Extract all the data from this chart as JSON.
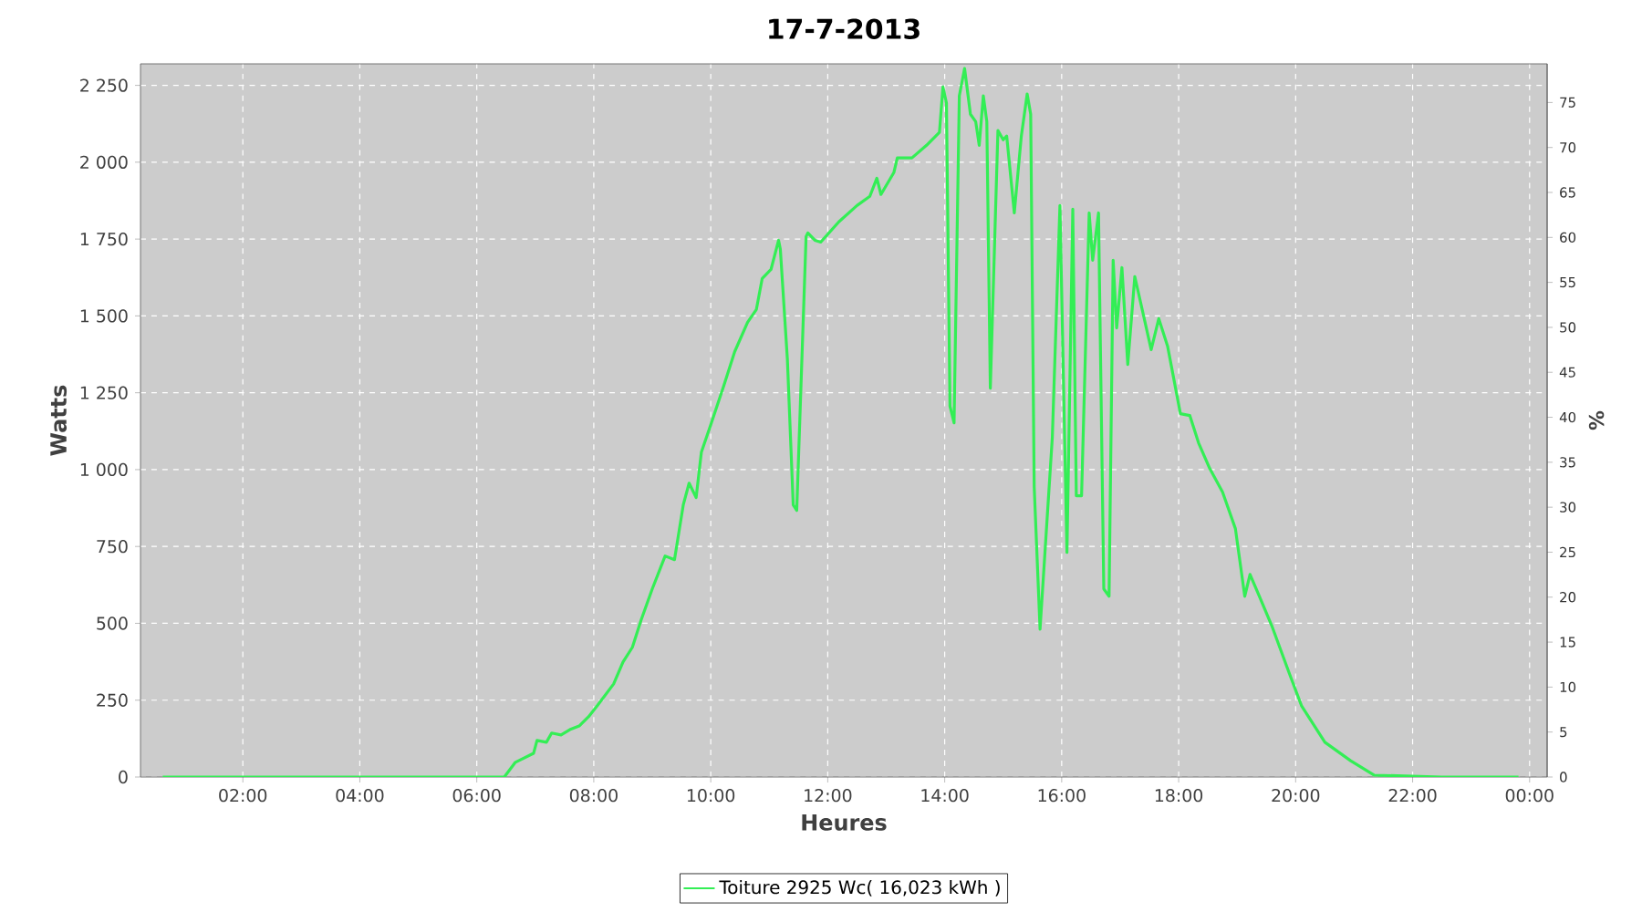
{
  "chart_data": {
    "type": "line",
    "title": "17-7-2013",
    "xlabel": "Heures",
    "ylabel": "Watts",
    "y2label": "%",
    "xlim": [
      0.25,
      24.3
    ],
    "ylim": [
      0,
      2320
    ],
    "y2lim": [
      0,
      79.3
    ],
    "xticks": [
      {
        "value": 2,
        "label": "02:00"
      },
      {
        "value": 4,
        "label": "04:00"
      },
      {
        "value": 6,
        "label": "06:00"
      },
      {
        "value": 8,
        "label": "08:00"
      },
      {
        "value": 10,
        "label": "10:00"
      },
      {
        "value": 12,
        "label": "12:00"
      },
      {
        "value": 14,
        "label": "14:00"
      },
      {
        "value": 16,
        "label": "16:00"
      },
      {
        "value": 18,
        "label": "18:00"
      },
      {
        "value": 20,
        "label": "20:00"
      },
      {
        "value": 22,
        "label": "22:00"
      },
      {
        "value": 24,
        "label": "00:00"
      }
    ],
    "yticks": [
      0,
      250,
      500,
      750,
      {
        "value": 1000,
        "label": "1 000"
      },
      {
        "value": 1250,
        "label": "1 250"
      },
      {
        "value": 1500,
        "label": "1 500"
      },
      {
        "value": 1750,
        "label": "1 750"
      },
      {
        "value": 2000,
        "label": "2 000"
      },
      {
        "value": 2250,
        "label": "2 250"
      }
    ],
    "y2ticks": [
      0,
      5,
      10,
      15,
      20,
      25,
      30,
      35,
      40,
      45,
      50,
      55,
      60,
      65,
      70,
      75
    ],
    "grid": true,
    "legend": "bottom",
    "series": [
      {
        "name": "Toiture 2925 Wc( 16,023 kWh )",
        "color": "#33ee55",
        "x": [
          0.63,
          3.0,
          6.0,
          6.47,
          6.66,
          6.97,
          7.03,
          7.19,
          7.28,
          7.44,
          7.59,
          7.75,
          7.91,
          8.06,
          8.34,
          8.5,
          8.66,
          8.81,
          9.0,
          9.22,
          9.38,
          9.53,
          9.63,
          9.75,
          9.84,
          10.0,
          10.22,
          10.41,
          10.63,
          10.78,
          10.88,
          11.03,
          11.16,
          11.19,
          11.31,
          11.41,
          11.47,
          11.63,
          11.66,
          11.78,
          11.88,
          12.19,
          12.5,
          12.72,
          12.84,
          12.91,
          13.13,
          13.19,
          13.44,
          13.69,
          13.91,
          13.97,
          14.03,
          14.09,
          14.16,
          14.25,
          14.34,
          14.44,
          14.53,
          14.59,
          14.66,
          14.72,
          14.78,
          14.91,
          15.0,
          15.06,
          15.19,
          15.31,
          15.41,
          15.47,
          15.53,
          15.63,
          15.84,
          15.97,
          16.09,
          16.19,
          16.25,
          16.34,
          16.47,
          16.53,
          16.63,
          16.72,
          16.81,
          16.88,
          16.94,
          17.03,
          17.13,
          17.25,
          17.53,
          17.66,
          17.81,
          18.03,
          18.19,
          18.34,
          18.53,
          18.75,
          18.97,
          19.13,
          19.22,
          19.38,
          19.59,
          19.9,
          20.1,
          20.5,
          20.94,
          21.34,
          22.5,
          23.81
        ],
        "values": [
          0,
          0,
          0,
          0,
          48,
          77,
          119,
          113,
          143,
          137,
          154,
          166,
          196,
          232,
          303,
          374,
          422,
          511,
          612,
          719,
          707,
          885,
          956,
          909,
          1057,
          1146,
          1271,
          1384,
          1479,
          1521,
          1622,
          1651,
          1746,
          1717,
          1360,
          885,
          867,
          1758,
          1770,
          1746,
          1740,
          1806,
          1859,
          1889,
          1948,
          1895,
          1966,
          2014,
          2014,
          2055,
          2097,
          2245,
          2192,
          1206,
          1152,
          2216,
          2305,
          2156,
          2132,
          2055,
          2216,
          2132,
          1265,
          2103,
          2073,
          2085,
          1835,
          2085,
          2222,
          2156,
          944,
          481,
          1105,
          1859,
          731,
          1847,
          915,
          915,
          1835,
          1681,
          1835,
          612,
          588,
          1681,
          1461,
          1657,
          1342,
          1628,
          1390,
          1491,
          1402,
          1182,
          1176,
          1087,
          1004,
          927,
          808,
          588,
          659,
          588,
          493,
          333,
          232,
          113,
          53,
          6,
          0,
          0
        ]
      }
    ]
  }
}
